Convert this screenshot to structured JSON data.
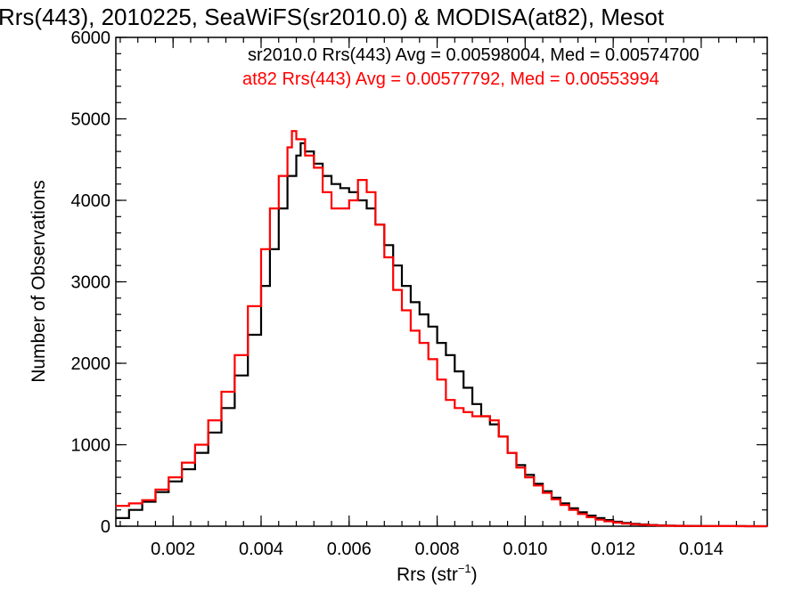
{
  "chart_data": {
    "type": "line",
    "title": "Rrs(443), 2010225, SeaWiFS(sr2010.0) & MODISA(at82), Mesot",
    "xlabel_main": "Rrs (str",
    "xlabel_sup": "−1",
    "xlabel_close": ")",
    "ylabel": "Number of Observations",
    "xlim": [
      0.0007,
      0.0155
    ],
    "ylim": [
      0,
      6000
    ],
    "x_ticks": [
      0.002,
      0.004,
      0.006,
      0.008,
      0.01,
      0.012,
      0.014
    ],
    "x_tick_labels": [
      "0.002",
      "0.004",
      "0.006",
      "0.008",
      "0.010",
      "0.012",
      "0.014"
    ],
    "y_ticks": [
      0,
      1000,
      2000,
      3000,
      4000,
      5000,
      6000
    ],
    "y_tick_labels": [
      "0",
      "1000",
      "2000",
      "3000",
      "4000",
      "5000",
      "6000"
    ],
    "legend_placement": "top-right",
    "series": [
      {
        "name": "sr2010.0 Rrs(443) Avg = 0.00598004, Med = 0.00574700",
        "color": "#000000",
        "x": [
          0.0007,
          0.001,
          0.0013,
          0.0016,
          0.0019,
          0.0022,
          0.0025,
          0.0028,
          0.0031,
          0.0034,
          0.0037,
          0.004,
          0.0042,
          0.0044,
          0.0046,
          0.0048,
          0.0049,
          0.005,
          0.0052,
          0.0054,
          0.0056,
          0.0058,
          0.006,
          0.0062,
          0.0064,
          0.0066,
          0.0068,
          0.007,
          0.0072,
          0.0074,
          0.0076,
          0.0078,
          0.008,
          0.0082,
          0.0084,
          0.0086,
          0.0088,
          0.009,
          0.0092,
          0.0094,
          0.0096,
          0.0098,
          0.01,
          0.0102,
          0.0104,
          0.0106,
          0.0108,
          0.011,
          0.0112,
          0.0114,
          0.0116,
          0.0118,
          0.012,
          0.0122,
          0.0124,
          0.0126,
          0.0128,
          0.013,
          0.0132,
          0.0134,
          0.0136,
          0.0138,
          0.014,
          0.0142,
          0.0144,
          0.0146,
          0.0148,
          0.015,
          0.0152,
          0.0155
        ],
        "y": [
          100,
          200,
          300,
          420,
          550,
          700,
          900,
          1150,
          1450,
          1850,
          2350,
          2950,
          3400,
          3900,
          4300,
          4550,
          4700,
          4600,
          4450,
          4300,
          4200,
          4150,
          4100,
          4000,
          3900,
          3700,
          3450,
          3200,
          2950,
          2750,
          2600,
          2450,
          2250,
          2100,
          1900,
          1700,
          1500,
          1350,
          1250,
          1100,
          900,
          750,
          630,
          520,
          430,
          350,
          280,
          220,
          170,
          130,
          100,
          75,
          55,
          40,
          30,
          22,
          15,
          10,
          8,
          6,
          4,
          3,
          2,
          2,
          1,
          1,
          1,
          0,
          0,
          0
        ]
      },
      {
        "name": "at82 Rrs(443) Avg = 0.00577792, Med = 0.00553994",
        "color": "#ff0000",
        "x": [
          0.0007,
          0.001,
          0.0013,
          0.0016,
          0.0019,
          0.0022,
          0.0025,
          0.0028,
          0.0031,
          0.0034,
          0.0037,
          0.004,
          0.0042,
          0.0044,
          0.0046,
          0.0047,
          0.0048,
          0.005,
          0.0052,
          0.0054,
          0.0056,
          0.0058,
          0.006,
          0.0062,
          0.0064,
          0.0066,
          0.0068,
          0.007,
          0.0072,
          0.0074,
          0.0076,
          0.0078,
          0.008,
          0.0082,
          0.0084,
          0.0086,
          0.0088,
          0.009,
          0.0092,
          0.0094,
          0.0096,
          0.0098,
          0.01,
          0.0102,
          0.0104,
          0.0106,
          0.0108,
          0.011,
          0.0112,
          0.0114,
          0.0116,
          0.0118,
          0.012,
          0.0122,
          0.0124,
          0.0126,
          0.0128,
          0.013,
          0.0132,
          0.0134,
          0.0136,
          0.0138,
          0.014,
          0.0142,
          0.0144,
          0.0146,
          0.0148,
          0.015,
          0.0152,
          0.0155
        ],
        "y": [
          250,
          280,
          320,
          450,
          600,
          780,
          1000,
          1300,
          1650,
          2100,
          2700,
          3400,
          3900,
          4300,
          4650,
          4850,
          4750,
          4550,
          4400,
          4100,
          3900,
          3900,
          4000,
          4250,
          4100,
          3700,
          3300,
          2900,
          2650,
          2400,
          2250,
          2050,
          1800,
          1550,
          1450,
          1400,
          1350,
          1350,
          1300,
          1100,
          900,
          720,
          600,
          500,
          410,
          330,
          260,
          200,
          150,
          110,
          80,
          60,
          45,
          33,
          24,
          17,
          12,
          8,
          6,
          4,
          3,
          2,
          2,
          1,
          1,
          1,
          0,
          0,
          0,
          0
        ]
      }
    ]
  }
}
